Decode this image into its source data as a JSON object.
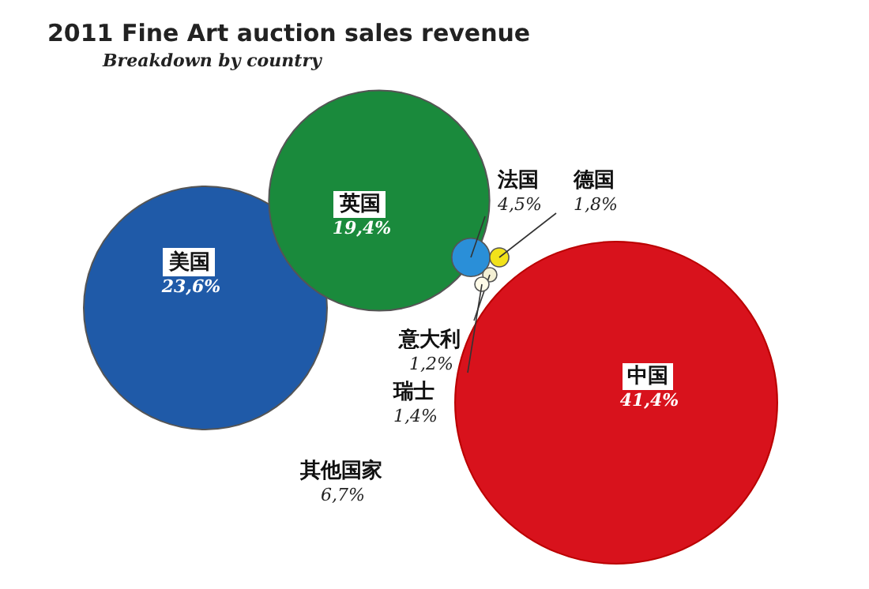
{
  "chart_data": {
    "type": "other",
    "title": "2011 Fine Art auction sales revenue",
    "subtitle": "Breakdown by country",
    "categories": [
      "美国",
      "英国",
      "法国",
      "德国",
      "意大利",
      "瑞士",
      "中国",
      "其他国家"
    ],
    "values": [
      23.6,
      19.4,
      4.5,
      1.8,
      1.2,
      1.4,
      41.4,
      6.7
    ],
    "value_labels": [
      "23,6%",
      "19,4%",
      "4,5%",
      "1,8%",
      "1,2%",
      "1,4%",
      "41,4%",
      "6,7%"
    ],
    "colors": [
      "#1f5aa8",
      "#1a8a3c",
      "#2a8fd8",
      "#f2e21a",
      "#f4f0d4",
      "#fffbe8",
      "#d8121c",
      null
    ]
  }
}
